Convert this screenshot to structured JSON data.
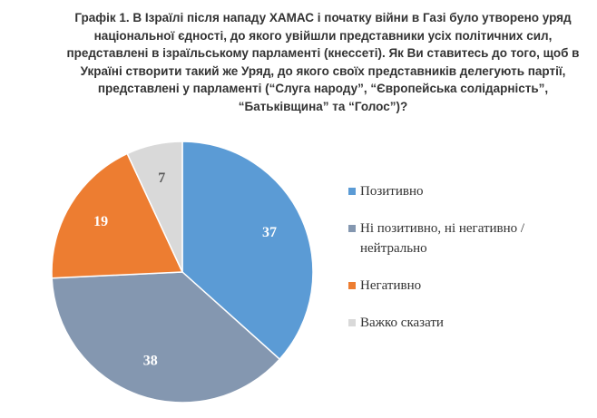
{
  "chart_data": {
    "type": "pie",
    "title": "Графік 1. В Ізраїлі після нападу ХАМАС і початку війни в Газі було утворено уряд національної єдності, до якого увійшли представники усіх політичних сил, представлені в ізраїльському парламенті (кнессеті). Як Ви ставитесь до того, щоб в Україні створити такий же Уряд, до якого своїх представників делегують партії, представлені у парламенті (“Слуга народу”, “Європейська солідарність”, “Батьківщина” та “Голос”)?",
    "categories": [
      "Позитивно",
      "Ні позитивно, ні негативно / нейтрально",
      "Негативно",
      "Важко сказати"
    ],
    "values": [
      37,
      38,
      19,
      7
    ],
    "colors": [
      "#5b9bd5",
      "#8497b0",
      "#ed7d31",
      "#d9d9d9"
    ],
    "label_colors": [
      "#ffffff",
      "#ffffff",
      "#ffffff",
      "#595959"
    ],
    "legend": "right"
  }
}
